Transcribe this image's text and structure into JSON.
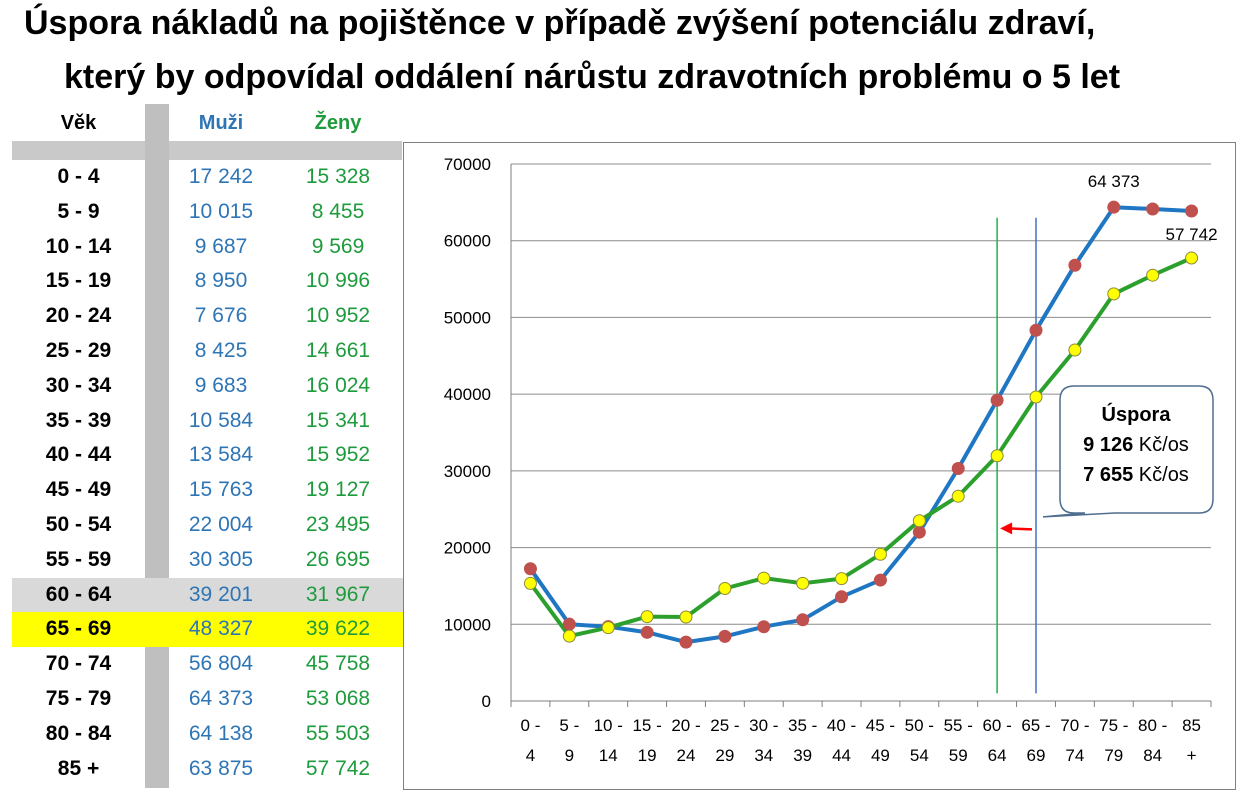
{
  "title_line1": "Úspora nákladů na pojištěnce v případě zvýšení potenciálu zdraví,",
  "title_line2": "který by odpovídal oddálení nárůstu zdravotních problému o 5 let",
  "table": {
    "headers": {
      "age": "Věk",
      "men": "Muži",
      "women": "Ženy"
    },
    "rows": [
      {
        "age": "0 - 4",
        "men": "17 242",
        "women": "15 328"
      },
      {
        "age": "5 - 9",
        "men": "10 015",
        "women": "8 455"
      },
      {
        "age": "10 - 14",
        "men": "9 687",
        "women": "9 569"
      },
      {
        "age": "15 - 19",
        "men": "8 950",
        "women": "10 996"
      },
      {
        "age": "20 - 24",
        "men": "7 676",
        "women": "10 952"
      },
      {
        "age": "25 - 29",
        "men": "8 425",
        "women": "14 661"
      },
      {
        "age": "30 - 34",
        "men": "9 683",
        "women": "16 024"
      },
      {
        "age": "35 - 39",
        "men": "10 584",
        "women": "15 341"
      },
      {
        "age": "40 - 44",
        "men": "13 584",
        "women": "15 952"
      },
      {
        "age": "45 - 49",
        "men": "15 763",
        "women": "19 127"
      },
      {
        "age": "50 - 54",
        "men": "22 004",
        "women": "23 495"
      },
      {
        "age": "55 - 59",
        "men": "30 305",
        "women": "26 695"
      },
      {
        "age": "60 - 64",
        "men": "39 201",
        "women": "31 967",
        "highlight": "grey"
      },
      {
        "age": "65 - 69",
        "men": "48 327",
        "women": "39 622",
        "highlight": "yellow"
      },
      {
        "age": "70 - 74",
        "men": "56 804",
        "women": "45 758"
      },
      {
        "age": "75 - 79",
        "men": "64 373",
        "women": "53 068"
      },
      {
        "age": "80 - 84",
        "men": "64 138",
        "women": "55 503"
      },
      {
        "age": "85 +",
        "men": "63 875",
        "women": "57 742"
      }
    ]
  },
  "chart_data": {
    "type": "line",
    "categories": [
      [
        "0 -",
        "4"
      ],
      [
        "5 -",
        "9"
      ],
      [
        "10 -",
        "14"
      ],
      [
        "15 -",
        "19"
      ],
      [
        "20 -",
        "24"
      ],
      [
        "25 -",
        "29"
      ],
      [
        "30 -",
        "34"
      ],
      [
        "35 -",
        "39"
      ],
      [
        "40 -",
        "44"
      ],
      [
        "45 -",
        "49"
      ],
      [
        "50 -",
        "54"
      ],
      [
        "55 -",
        "59"
      ],
      [
        "60 -",
        "64"
      ],
      [
        "65 -",
        "69"
      ],
      [
        "70 -",
        "74"
      ],
      [
        "75 -",
        "79"
      ],
      [
        "80 -",
        "84"
      ],
      [
        "85",
        "+"
      ]
    ],
    "series": [
      {
        "values": [
          17242,
          10015,
          9687,
          8950,
          7676,
          8425,
          9683,
          10584,
          13584,
          15763,
          22004,
          30305,
          39201,
          48327,
          56804,
          64373,
          64138,
          63875
        ],
        "line_color": "#1f77c4",
        "marker_color": "#c0504d"
      },
      {
        "values": [
          15328,
          8455,
          9569,
          10996,
          10952,
          14661,
          16024,
          15341,
          15952,
          19127,
          23495,
          26695,
          31967,
          39622,
          45758,
          53068,
          55503,
          57742
        ],
        "line_color": "#2ca02c",
        "marker_color": "#ffff00"
      }
    ],
    "ylim": [
      0,
      70000
    ],
    "yticks": [
      "0",
      "10000",
      "20000",
      "30000",
      "40000",
      "50000",
      "60000",
      "70000"
    ],
    "grid": "horizontal",
    "data_labels": [
      {
        "series": 0,
        "index": 15,
        "text": "64 373"
      },
      {
        "series": 1,
        "index": 17,
        "text": "57 742"
      }
    ],
    "annotations": {
      "vlines": [
        {
          "index": 12,
          "color": "#22b14c"
        },
        {
          "index": 13,
          "color": "#4472c4"
        }
      ],
      "arrow": {
        "color": "#ff0000",
        "direction": "left"
      },
      "callout": {
        "title": "Úspora",
        "line1_value": "9 126",
        "line1_unit": " Kč/os",
        "line2_value": "7 655",
        "line2_unit": " Kč/os"
      }
    }
  }
}
